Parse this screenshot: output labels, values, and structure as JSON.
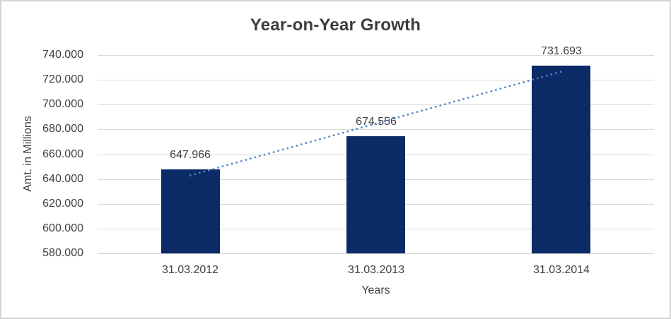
{
  "chart_data": {
    "type": "bar",
    "title": "Year-on-Year Growth",
    "xlabel": "Years",
    "ylabel": "Amt. in Millions",
    "categories": [
      "31.03.2012",
      "31.03.2013",
      "31.03.2014"
    ],
    "values": [
      647.966,
      674.556,
      731.693
    ],
    "data_labels": [
      "647.966",
      "674.556",
      "731.693"
    ],
    "ylim": [
      580,
      740
    ],
    "ytick_step": 20,
    "ytick_labels": [
      "580.000",
      "600.000",
      "620.000",
      "640.000",
      "660.000",
      "680.000",
      "700.000",
      "720.000",
      "740.000"
    ],
    "grid": true,
    "legend_position": "none",
    "trendline": {
      "type": "linear",
      "style": "dotted"
    },
    "colors": {
      "bar": "#0b2a66",
      "trend": "#4e84ca",
      "grid": "#d9d9d9",
      "axis": "#cfcfcf",
      "text": "#404040",
      "title": "#3d3d3d",
      "frame_border": "#d4d4d4",
      "background": "#ffffff"
    }
  }
}
